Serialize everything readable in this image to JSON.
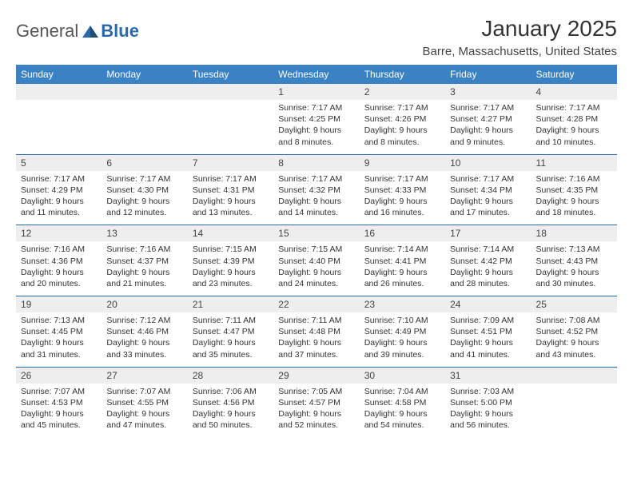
{
  "logo": {
    "text1": "General",
    "text2": "Blue",
    "colors": {
      "text": "#555555",
      "accent": "#2b6aa8"
    }
  },
  "title": "January 2025",
  "location": "Barre, Massachusetts, United States",
  "dow": [
    "Sunday",
    "Monday",
    "Tuesday",
    "Wednesday",
    "Thursday",
    "Friday",
    "Saturday"
  ],
  "style": {
    "header_bg": "#3b82c4",
    "header_fg": "#ffffff",
    "daynum_bg": "#eeeeee",
    "border_color": "#2b6aa8",
    "body_fontsize": 10.5,
    "daynum_fontsize": 12
  },
  "weeks": [
    [
      null,
      null,
      null,
      {
        "n": "1",
        "sr": "7:17 AM",
        "ss": "4:25 PM",
        "dl": "9 hours and 8 minutes."
      },
      {
        "n": "2",
        "sr": "7:17 AM",
        "ss": "4:26 PM",
        "dl": "9 hours and 8 minutes."
      },
      {
        "n": "3",
        "sr": "7:17 AM",
        "ss": "4:27 PM",
        "dl": "9 hours and 9 minutes."
      },
      {
        "n": "4",
        "sr": "7:17 AM",
        "ss": "4:28 PM",
        "dl": "9 hours and 10 minutes."
      }
    ],
    [
      {
        "n": "5",
        "sr": "7:17 AM",
        "ss": "4:29 PM",
        "dl": "9 hours and 11 minutes."
      },
      {
        "n": "6",
        "sr": "7:17 AM",
        "ss": "4:30 PM",
        "dl": "9 hours and 12 minutes."
      },
      {
        "n": "7",
        "sr": "7:17 AM",
        "ss": "4:31 PM",
        "dl": "9 hours and 13 minutes."
      },
      {
        "n": "8",
        "sr": "7:17 AM",
        "ss": "4:32 PM",
        "dl": "9 hours and 14 minutes."
      },
      {
        "n": "9",
        "sr": "7:17 AM",
        "ss": "4:33 PM",
        "dl": "9 hours and 16 minutes."
      },
      {
        "n": "10",
        "sr": "7:17 AM",
        "ss": "4:34 PM",
        "dl": "9 hours and 17 minutes."
      },
      {
        "n": "11",
        "sr": "7:16 AM",
        "ss": "4:35 PM",
        "dl": "9 hours and 18 minutes."
      }
    ],
    [
      {
        "n": "12",
        "sr": "7:16 AM",
        "ss": "4:36 PM",
        "dl": "9 hours and 20 minutes."
      },
      {
        "n": "13",
        "sr": "7:16 AM",
        "ss": "4:37 PM",
        "dl": "9 hours and 21 minutes."
      },
      {
        "n": "14",
        "sr": "7:15 AM",
        "ss": "4:39 PM",
        "dl": "9 hours and 23 minutes."
      },
      {
        "n": "15",
        "sr": "7:15 AM",
        "ss": "4:40 PM",
        "dl": "9 hours and 24 minutes."
      },
      {
        "n": "16",
        "sr": "7:14 AM",
        "ss": "4:41 PM",
        "dl": "9 hours and 26 minutes."
      },
      {
        "n": "17",
        "sr": "7:14 AM",
        "ss": "4:42 PM",
        "dl": "9 hours and 28 minutes."
      },
      {
        "n": "18",
        "sr": "7:13 AM",
        "ss": "4:43 PM",
        "dl": "9 hours and 30 minutes."
      }
    ],
    [
      {
        "n": "19",
        "sr": "7:13 AM",
        "ss": "4:45 PM",
        "dl": "9 hours and 31 minutes."
      },
      {
        "n": "20",
        "sr": "7:12 AM",
        "ss": "4:46 PM",
        "dl": "9 hours and 33 minutes."
      },
      {
        "n": "21",
        "sr": "7:11 AM",
        "ss": "4:47 PM",
        "dl": "9 hours and 35 minutes."
      },
      {
        "n": "22",
        "sr": "7:11 AM",
        "ss": "4:48 PM",
        "dl": "9 hours and 37 minutes."
      },
      {
        "n": "23",
        "sr": "7:10 AM",
        "ss": "4:49 PM",
        "dl": "9 hours and 39 minutes."
      },
      {
        "n": "24",
        "sr": "7:09 AM",
        "ss": "4:51 PM",
        "dl": "9 hours and 41 minutes."
      },
      {
        "n": "25",
        "sr": "7:08 AM",
        "ss": "4:52 PM",
        "dl": "9 hours and 43 minutes."
      }
    ],
    [
      {
        "n": "26",
        "sr": "7:07 AM",
        "ss": "4:53 PM",
        "dl": "9 hours and 45 minutes."
      },
      {
        "n": "27",
        "sr": "7:07 AM",
        "ss": "4:55 PM",
        "dl": "9 hours and 47 minutes."
      },
      {
        "n": "28",
        "sr": "7:06 AM",
        "ss": "4:56 PM",
        "dl": "9 hours and 50 minutes."
      },
      {
        "n": "29",
        "sr": "7:05 AM",
        "ss": "4:57 PM",
        "dl": "9 hours and 52 minutes."
      },
      {
        "n": "30",
        "sr": "7:04 AM",
        "ss": "4:58 PM",
        "dl": "9 hours and 54 minutes."
      },
      {
        "n": "31",
        "sr": "7:03 AM",
        "ss": "5:00 PM",
        "dl": "9 hours and 56 minutes."
      },
      null
    ]
  ],
  "labels": {
    "sunrise": "Sunrise:",
    "sunset": "Sunset:",
    "daylight": "Daylight:"
  }
}
